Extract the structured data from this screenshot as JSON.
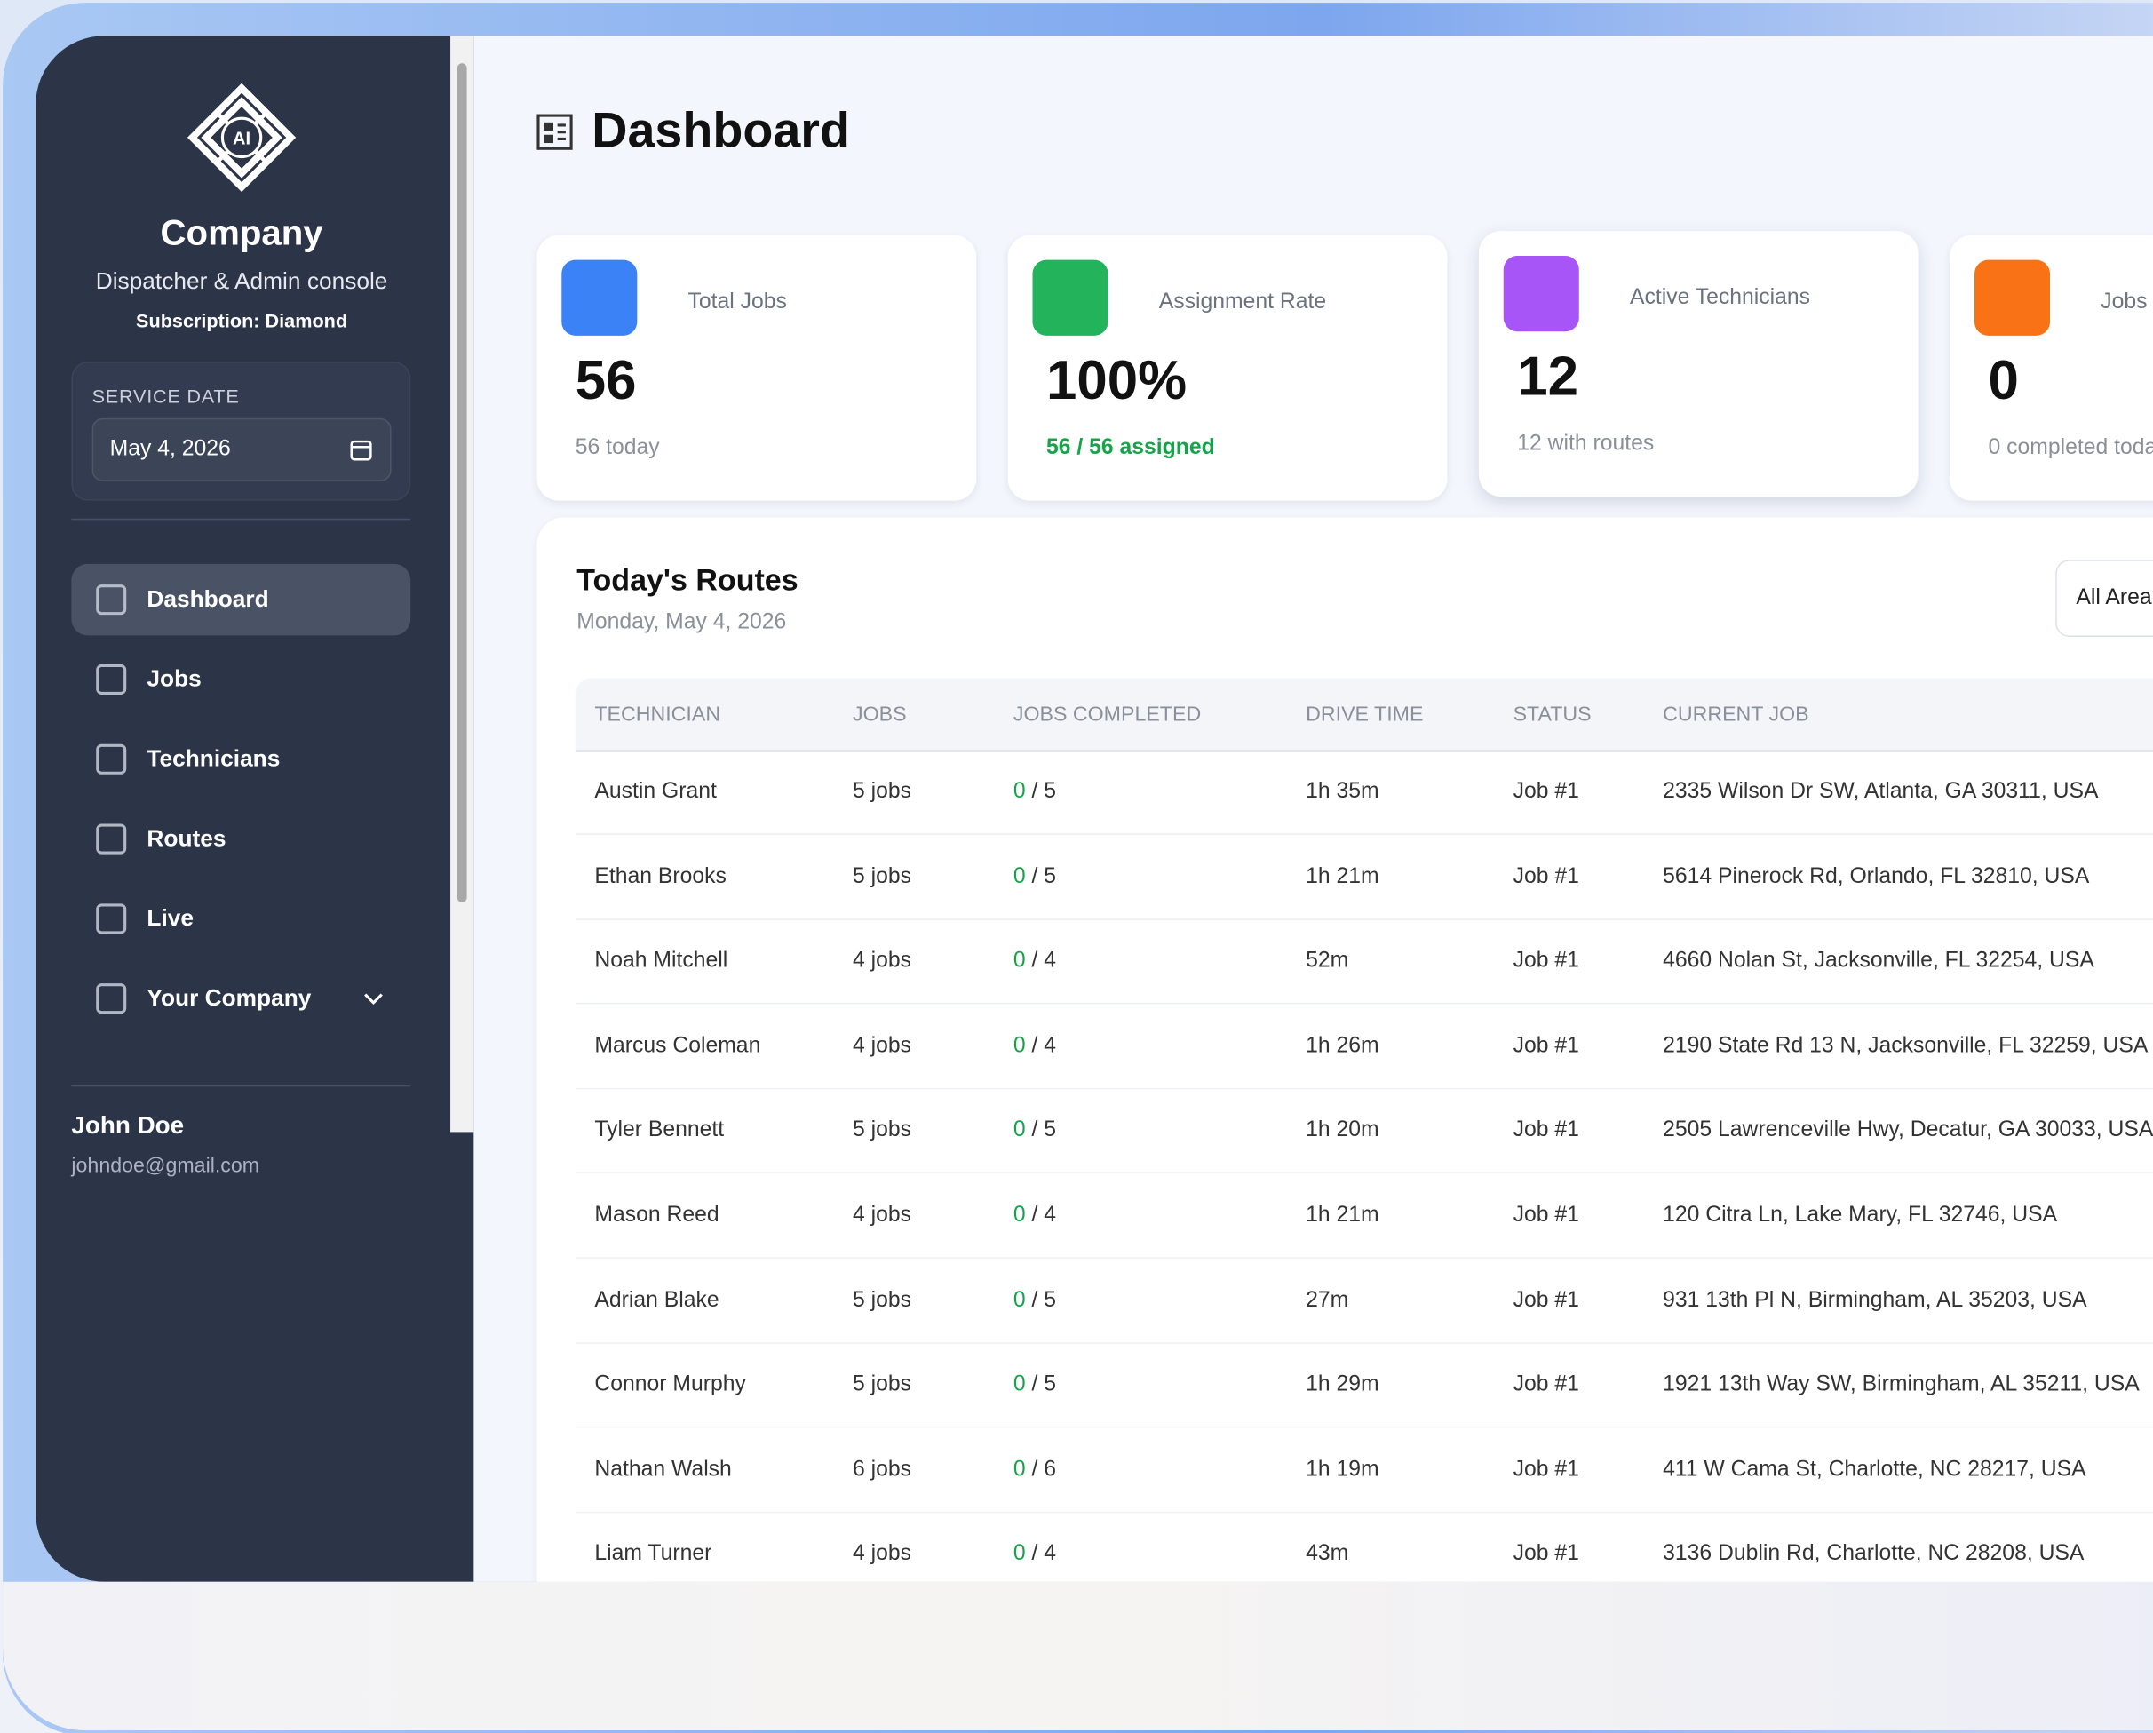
{
  "sidebar": {
    "logo_text": "AI",
    "company": "Company",
    "subtitle": "Dispatcher & Admin console",
    "subscription": "Subscription: Diamond",
    "service_date_label": "SERVICE DATE",
    "service_date": "May 4, 2026",
    "nav": [
      "Dashboard",
      "Jobs",
      "Technicians",
      "Routes",
      "Live",
      "Your Company"
    ],
    "user": {
      "name": "John Doe",
      "email": "johndoe@gmail.com"
    }
  },
  "header": {
    "title": "Dashboard"
  },
  "cards": [
    {
      "label": "Total Jobs",
      "value": "56",
      "sub": "56 today"
    },
    {
      "label": "Assignment Rate",
      "value": "100%",
      "sub": "56 / 56 assigned"
    },
    {
      "label": "Active Technicians",
      "value": "12",
      "sub": "12 with routes"
    },
    {
      "label": "Jobs",
      "value": "0",
      "sub": "0 completed toda"
    }
  ],
  "routes": {
    "title": "Today's Routes",
    "date": "Monday, May 4, 2026",
    "filter": "All Area",
    "columns": [
      "TECHNICIAN",
      "JOBS",
      "JOBS COMPLETED",
      "DRIVE TIME",
      "STATUS",
      "CURRENT JOB"
    ],
    "rows": [
      [
        "Austin Grant",
        "5 jobs",
        [
          "0",
          "/ 5"
        ],
        "1h 35m",
        "Job #1",
        "2335 Wilson Dr SW, Atlanta, GA 30311, USA"
      ],
      [
        "Ethan Brooks",
        "5 jobs",
        [
          "0",
          "/ 5"
        ],
        "1h 21m",
        "Job #1",
        "5614 Pinerock Rd, Orlando, FL 32810, USA"
      ],
      [
        "Noah Mitchell",
        "4 jobs",
        [
          "0",
          "/ 4"
        ],
        "52m",
        "Job #1",
        "4660 Nolan St, Jacksonville, FL 32254, USA"
      ],
      [
        "Marcus Coleman",
        "4 jobs",
        [
          "0",
          "/ 4"
        ],
        "1h 26m",
        "Job #1",
        "2190 State Rd 13 N, Jacksonville, FL 32259, USA"
      ],
      [
        "Tyler Bennett",
        "5 jobs",
        [
          "0",
          "/ 5"
        ],
        "1h 20m",
        "Job #1",
        "2505 Lawrenceville Hwy, Decatur, GA 30033, USA"
      ],
      [
        "Mason Reed",
        "4 jobs",
        [
          "0",
          "/ 4"
        ],
        "1h 21m",
        "Job #1",
        "120 Citra Ln, Lake Mary, FL 32746, USA"
      ],
      [
        "Adrian Blake",
        "5 jobs",
        [
          "0",
          "/ 5"
        ],
        "27m",
        "Job #1",
        "931 13th Pl N, Birmingham, AL 35203, USA"
      ],
      [
        "Connor Murphy",
        "5 jobs",
        [
          "0",
          "/ 5"
        ],
        "1h 29m",
        "Job #1",
        "1921 13th Way SW, Birmingham, AL 35211, USA"
      ],
      [
        "Nathan Walsh",
        "6 jobs",
        [
          "0",
          "/ 6"
        ],
        "1h 19m",
        "Job #1",
        "411 W Cama St, Charlotte, NC 28217, USA"
      ],
      [
        "Liam Turner",
        "4 jobs",
        [
          "0",
          "/ 4"
        ],
        "43m",
        "Job #1",
        "3136 Dublin Rd, Charlotte, NC 28208, USA"
      ]
    ]
  }
}
